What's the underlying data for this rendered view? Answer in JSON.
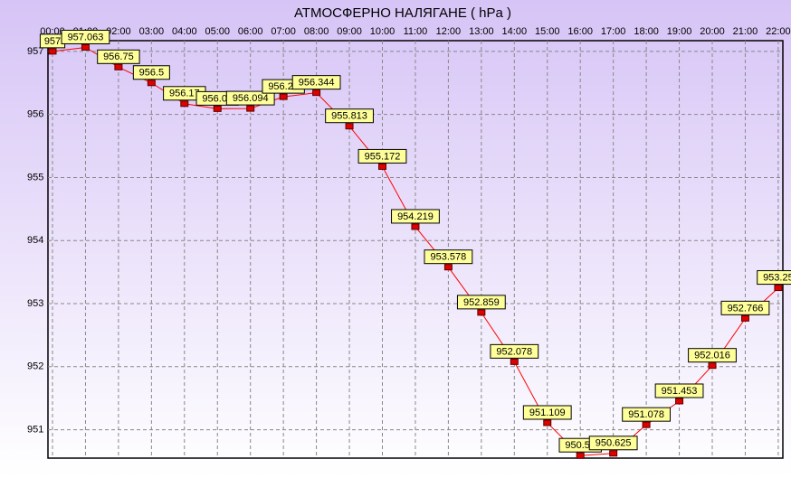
{
  "chart_data": {
    "type": "line",
    "title": "АТМОСФЕРНО НАЛЯГАНЕ  ( hPa )",
    "categories": [
      "00:00",
      "01:00",
      "02:00",
      "03:00",
      "04:00",
      "05:00",
      "06:00",
      "07:00",
      "08:00",
      "09:00",
      "10:00",
      "11:00",
      "12:00",
      "13:00",
      "14:00",
      "15:00",
      "16:00",
      "17:00",
      "18:00",
      "19:00",
      "20:00",
      "21:00",
      "22:00"
    ],
    "values": [
      957,
      957.063,
      956.75,
      956.5,
      956.17,
      956.09,
      956.094,
      956.28,
      956.344,
      955.813,
      955.172,
      954.219,
      953.578,
      952.859,
      952.078,
      951.109,
      950.59,
      950.625,
      951.078,
      951.453,
      952.016,
      952.766,
      953.25
    ],
    "color": "#ff0000",
    "ylim": [
      950.55,
      957.17
    ],
    "yticks": [
      951,
      952,
      953,
      954,
      955,
      956,
      957
    ],
    "grid": true
  }
}
